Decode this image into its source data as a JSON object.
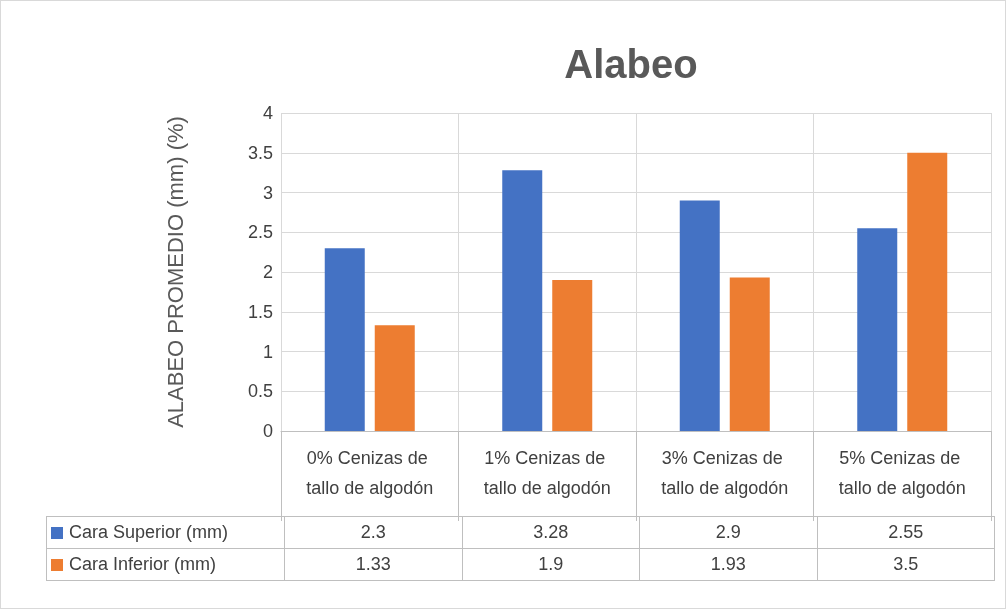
{
  "chart_data": {
    "type": "bar",
    "title": "Alabeo",
    "ylabel": "ALABEO PROMEDIO (mm) (%)",
    "categories": [
      "0% Cenizas de tallo de algodón",
      "1% Cenizas de tallo de algodón",
      "3% Cenizas de tallo de algodón",
      "5% Cenizas de tallo de algodón"
    ],
    "series": [
      {
        "name": "Cara Superior (mm)",
        "color": "#4472c4",
        "values": [
          2.3,
          3.28,
          2.9,
          2.55
        ]
      },
      {
        "name": "Cara Inferior (mm)",
        "color": "#ed7d31",
        "values": [
          1.33,
          1.9,
          1.93,
          3.5
        ]
      }
    ],
    "ylim": [
      0,
      4
    ],
    "yticks": [
      0,
      0.5,
      1,
      1.5,
      2,
      2.5,
      3,
      3.5,
      4
    ],
    "grid": true,
    "legend": "bottom left",
    "data_labels": true
  }
}
